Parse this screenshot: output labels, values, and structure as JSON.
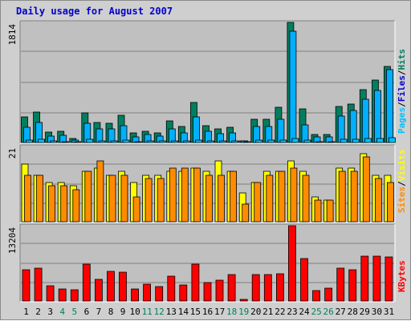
{
  "chart_data": {
    "title": "Daily usage for August 2007",
    "type": "bar",
    "categories": [
      "1",
      "2",
      "3",
      "4",
      "5",
      "6",
      "7",
      "8",
      "9",
      "10",
      "11",
      "12",
      "13",
      "14",
      "15",
      "16",
      "17",
      "18",
      "19",
      "20",
      "21",
      "22",
      "23",
      "24",
      "25",
      "26",
      "27",
      "28",
      "29",
      "30",
      "31"
    ],
    "weekend_days": [
      "4",
      "5",
      "11",
      "12",
      "18",
      "19",
      "25",
      "26"
    ],
    "colors": {
      "hits": "#007f5f",
      "files": "#00b0ff",
      "pages": "#00c0ff",
      "visits": "#ffff00",
      "sites": "#ff8c00",
      "kbytes": "#ff0000",
      "weekday_label": "#000000",
      "weekend_label": "#007f5f",
      "plot_bg": "#c0c0c0",
      "gridline": "#808080",
      "frame_bg": "#cfcfcf"
    },
    "panels": [
      {
        "id": "pages_files_hits",
        "max_label": "1814",
        "ymax": 1814,
        "legend_words": [
          "Pages",
          "Files",
          "Hits"
        ],
        "legend_colors": [
          "#00c0ff",
          "#0000cc",
          "#007f5f"
        ],
        "separators": [
          "/",
          "/"
        ],
        "series": [
          {
            "key": "hits",
            "values": [
              390,
              460,
              160,
              170,
              60,
              450,
              300,
              290,
              410,
              140,
              170,
              150,
              330,
              240,
              610,
              260,
              210,
              230,
              30,
              350,
              350,
              530,
              1814,
              510,
              120,
              120,
              550,
              580,
              800,
              940,
              1150
            ],
            "color": "#007f5f"
          },
          {
            "key": "files",
            "values": [
              230,
              300,
              100,
              110,
              40,
              290,
              200,
              200,
              250,
              90,
              120,
              100,
              200,
              150,
              390,
              170,
              130,
              150,
              20,
              240,
              240,
              350,
              1680,
              270,
              80,
              80,
              400,
              480,
              650,
              790,
              1100
            ],
            "color": "#00b0ff"
          },
          {
            "key": "pages",
            "values": [
              40,
              50,
              20,
              15,
              5,
              45,
              30,
              25,
              35,
              15,
              20,
              20,
              30,
              25,
              40,
              30,
              20,
              25,
              5,
              35,
              35,
              40,
              60,
              35,
              10,
              10,
              50,
              45,
              55,
              60,
              70
            ],
            "color": "#00c0ff"
          }
        ]
      },
      {
        "id": "sites_visits",
        "max_label": "21",
        "ymax": 21,
        "legend_words": [
          "Sites",
          "Visits"
        ],
        "legend_colors": [
          "#ff8c00",
          "#ffff00"
        ],
        "separators": [
          "/"
        ],
        "series": [
          {
            "key": "visits",
            "values": [
              16,
              13,
              11,
              11,
              10,
              14,
              15,
              13,
              14,
              11,
              13,
              13,
              14,
              14,
              15,
              14,
              17,
              14,
              8,
              11,
              14,
              14,
              17,
              14,
              7,
              6,
              15,
              15,
              19,
              13,
              13
            ],
            "color": "#ffff00"
          },
          {
            "key": "sites",
            "values": [
              13,
              13,
              10,
              10,
              9,
              14,
              17,
              13,
              13,
              7,
              12,
              12,
              15,
              15,
              15,
              13,
              13,
              14,
              5,
              11,
              13,
              14,
              15,
              13,
              6,
              6,
              14,
              14,
              18,
              12,
              11
            ],
            "color": "#ff8c00"
          }
        ]
      },
      {
        "id": "kbytes",
        "max_label": "13204",
        "ymax": 13204,
        "legend_words": [
          "KBytes"
        ],
        "legend_colors": [
          "#ff0000"
        ],
        "separators": [],
        "series": [
          {
            "key": "kbytes",
            "values": [
              5500,
              5700,
              2600,
              2100,
              2000,
              6400,
              3800,
              5200,
              5100,
              2100,
              2900,
              2500,
              4300,
              2800,
              6400,
              3200,
              3700,
              4600,
              300,
              4700,
              4700,
              4800,
              13204,
              7500,
              1800,
              2300,
              5800,
              5500,
              7800,
              7900,
              7700
            ],
            "color": "#ff0000"
          }
        ]
      }
    ],
    "grid": true
  }
}
